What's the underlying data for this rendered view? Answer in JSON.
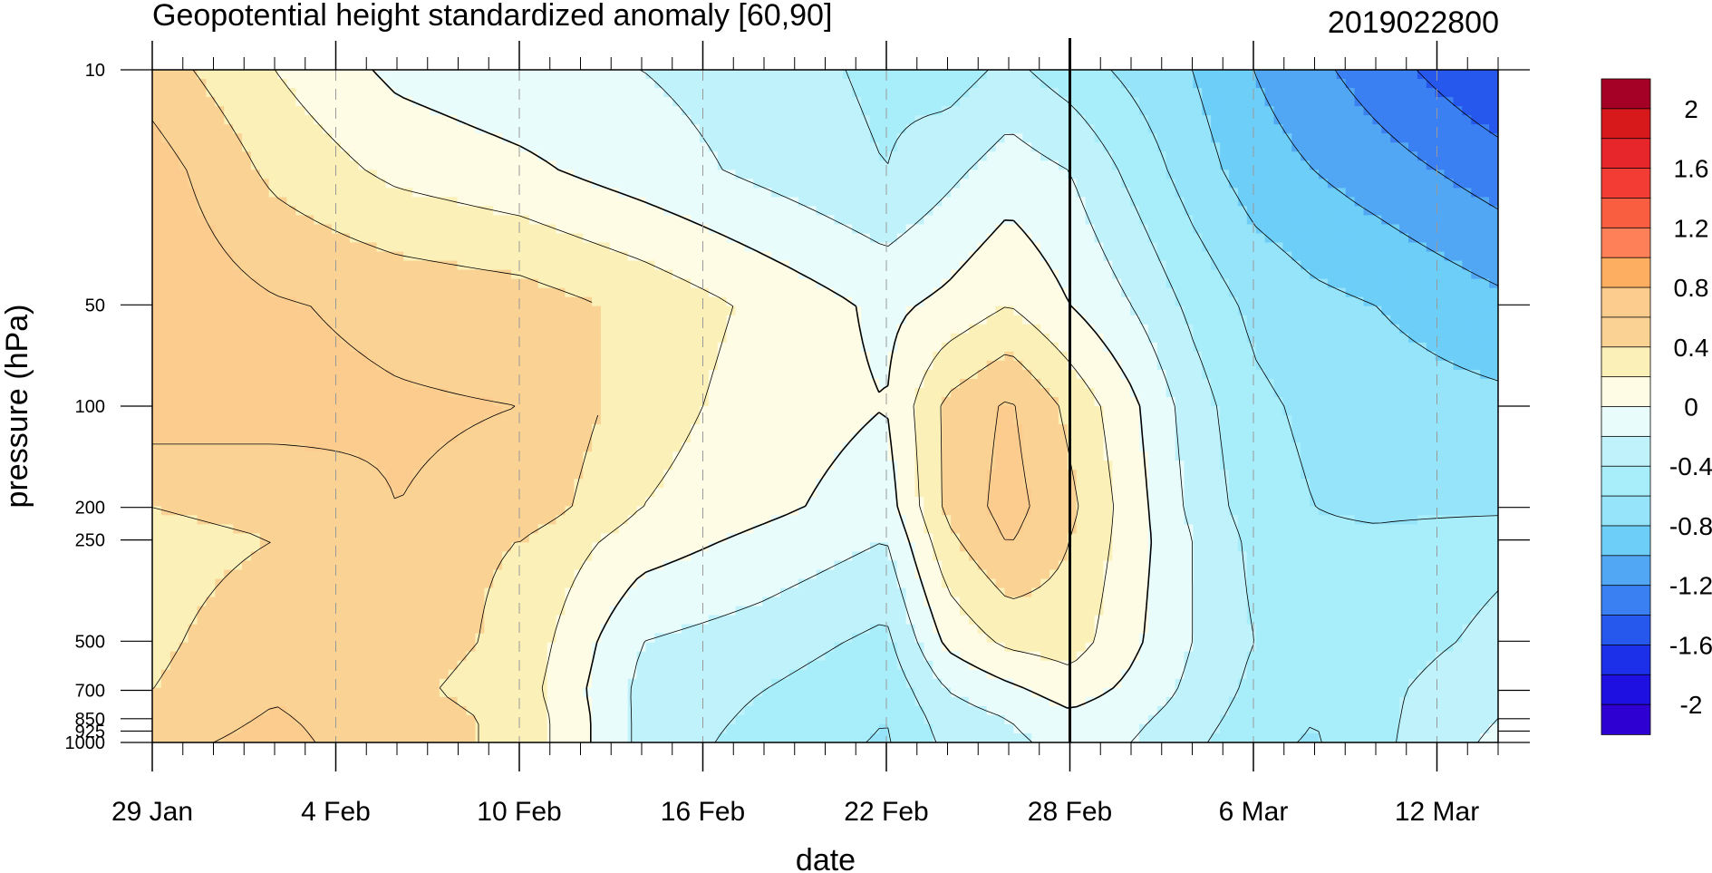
{
  "chart_data": {
    "type": "heatmap",
    "title": "Geopotential height standardized anomaly [60,90]",
    "title_right": "2019022800",
    "xlabel": "date",
    "ylabel": "pressure (hPa)",
    "x_ticks": [
      "29 Jan",
      "4 Feb",
      "10 Feb",
      "16 Feb",
      "22 Feb",
      "28 Feb",
      "6 Mar",
      "12 Mar"
    ],
    "x_range": [
      "29 Jan",
      "14 Mar"
    ],
    "y_ticks": [
      10,
      50,
      100,
      200,
      250,
      500,
      700,
      850,
      925,
      1000
    ],
    "y_range": [
      1000,
      10
    ],
    "y_scale": "log",
    "vertical_marker": "28 Feb",
    "colorbar": {
      "label_values": [
        "2",
        "1.6",
        "1.2",
        "0.8",
        "0.4",
        "0",
        "-0.4",
        "-0.8",
        "-1.2",
        "-1.6",
        "-2"
      ],
      "levels": [
        2.0,
        1.8,
        1.6,
        1.4,
        1.2,
        1.0,
        0.8,
        0.6,
        0.4,
        0.2,
        0.0,
        -0.2,
        -0.4,
        -0.6,
        -0.8,
        -1.0,
        -1.2,
        -1.4,
        -1.6,
        -1.8,
        -2.0
      ],
      "colors": [
        "#a50026",
        "#d7191c",
        "#e7262b",
        "#f23c34",
        "#fa5e40",
        "#fd8059",
        "#fdae61",
        "#fccc8e",
        "#fad394",
        "#fbf0b8",
        "#fefce4",
        "#e8fcfc",
        "#c0f2fb",
        "#a8eefa",
        "#96e4f9",
        "#6dcef8",
        "#52a7f4",
        "#3a80f2",
        "#2758ee",
        "#1b30e8",
        "#1e10e0",
        "#2e00d2"
      ]
    },
    "contour_levels": [
      -1.6,
      -1.4,
      -1.2,
      -1.0,
      -0.8,
      -0.6,
      -0.4,
      -0.2,
      0.0,
      0.2,
      0.4,
      0.6,
      0.8
    ],
    "grid": {
      "days": [
        0,
        4,
        8,
        12,
        16,
        20,
        24,
        26,
        28,
        30,
        32,
        34,
        36,
        38,
        40,
        44
      ],
      "pressures": [
        10,
        20,
        50,
        100,
        200,
        250,
        500,
        700,
        850,
        1000
      ],
      "values": [
        [
          0.5,
          0.2,
          -0.05,
          -0.15,
          -0.2,
          -0.3,
          -0.45,
          -0.5,
          -0.35,
          -0.5,
          -0.65,
          -0.8,
          -1.0,
          -1.15,
          -1.3,
          -1.6
        ],
        [
          0.7,
          0.35,
          0.15,
          0.05,
          -0.1,
          -0.25,
          -0.4,
          -0.25,
          -0.1,
          -0.2,
          -0.45,
          -0.7,
          -0.9,
          -1.0,
          -1.1,
          -1.3
        ],
        [
          0.75,
          0.62,
          0.55,
          0.5,
          0.35,
          0.15,
          -0.05,
          0.05,
          0.2,
          0.0,
          -0.2,
          -0.45,
          -0.65,
          -0.75,
          -0.8,
          -0.95
        ],
        [
          0.72,
          0.66,
          0.62,
          0.6,
          0.3,
          0.1,
          0.0,
          0.45,
          0.63,
          0.35,
          0.05,
          -0.3,
          -0.55,
          -0.65,
          -0.7,
          -0.75
        ],
        [
          0.4,
          0.5,
          0.6,
          0.55,
          0.2,
          0.05,
          -0.1,
          0.45,
          0.68,
          0.45,
          0.1,
          -0.25,
          -0.5,
          -0.6,
          -0.65,
          -0.65
        ],
        [
          0.3,
          0.4,
          0.45,
          0.4,
          0.1,
          -0.05,
          -0.2,
          0.35,
          0.62,
          0.4,
          0.1,
          -0.2,
          -0.45,
          -0.55,
          -0.55,
          -0.45
        ],
        [
          0.35,
          0.55,
          0.5,
          0.35,
          -0.2,
          -0.3,
          -0.45,
          0.05,
          0.25,
          0.3,
          0.05,
          -0.2,
          -0.4,
          -0.5,
          -0.5,
          -0.35
        ],
        [
          0.4,
          0.58,
          0.45,
          0.3,
          -0.25,
          -0.4,
          -0.55,
          -0.2,
          -0.05,
          0.1,
          -0.05,
          -0.25,
          -0.45,
          -0.55,
          -0.45,
          -0.25
        ],
        [
          0.5,
          0.62,
          0.5,
          0.35,
          -0.25,
          -0.45,
          -0.6,
          -0.3,
          -0.2,
          -0.05,
          -0.15,
          -0.3,
          -0.5,
          -0.6,
          -0.45,
          -0.2
        ],
        [
          0.55,
          0.65,
          0.5,
          0.35,
          -0.25,
          -0.5,
          -0.62,
          -0.35,
          -0.25,
          -0.12,
          -0.2,
          -0.35,
          -0.55,
          -0.62,
          -0.45,
          -0.15
        ]
      ]
    }
  }
}
